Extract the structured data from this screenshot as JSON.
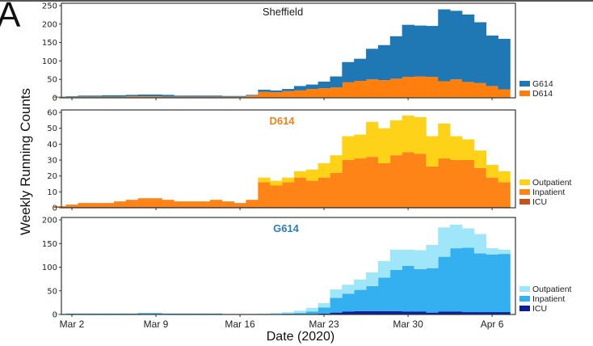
{
  "figure": {
    "panel_letter": "A",
    "ylabel": "Weekly Running Counts",
    "xlabel": "Date (2020)"
  },
  "chart_data": [
    {
      "type": "bar",
      "stacked": true,
      "title": "Sheffield",
      "title_color": "#1a1a1a",
      "xlabel": "Date (2020)",
      "ylabel": "Weekly Running Counts",
      "ylim": [
        0,
        250
      ],
      "yticks": [
        0,
        50,
        100,
        150,
        200,
        250
      ],
      "xtick_labels": [
        "Mar 2",
        "Mar 9",
        "Mar 16",
        "Mar 23",
        "Mar 30",
        "Apr 6"
      ],
      "legend_position": "right-bottom",
      "categories": [
        "Mar 1",
        "Mar 2",
        "Mar 3",
        "Mar 4",
        "Mar 5",
        "Mar 6",
        "Mar 7",
        "Mar 8",
        "Mar 9",
        "Mar 10",
        "Mar 11",
        "Mar 12",
        "Mar 13",
        "Mar 14",
        "Mar 15",
        "Mar 16",
        "Mar 17",
        "Mar 18",
        "Mar 19",
        "Mar 20",
        "Mar 21",
        "Mar 22",
        "Mar 23",
        "Mar 24",
        "Mar 25",
        "Mar 26",
        "Mar 27",
        "Mar 28",
        "Mar 29",
        "Mar 30",
        "Mar 31",
        "Apr 1",
        "Apr 2",
        "Apr 3",
        "Apr 4",
        "Apr 5",
        "Apr 6",
        "Apr 7"
      ],
      "series": [
        {
          "name": "D614",
          "color": "#ff7f0e",
          "values": [
            2,
            2,
            3,
            3,
            3,
            3,
            4,
            4,
            4,
            3,
            3,
            3,
            3,
            3,
            3,
            3,
            6,
            16,
            15,
            18,
            20,
            24,
            26,
            28,
            42,
            46,
            50,
            48,
            52,
            57,
            58,
            57,
            45,
            50,
            43,
            40,
            32,
            23
          ]
        },
        {
          "name": "G614",
          "color": "#1f77b4",
          "values": [
            1,
            2,
            3,
            3,
            4,
            4,
            4,
            5,
            5,
            5,
            3,
            3,
            3,
            3,
            2,
            2,
            2,
            6,
            5,
            6,
            12,
            12,
            18,
            30,
            55,
            60,
            83,
            95,
            115,
            141,
            138,
            138,
            195,
            186,
            183,
            165,
            137,
            137
          ]
        }
      ],
      "legend": [
        {
          "label": "G614",
          "color": "#1f77b4"
        },
        {
          "label": "D614",
          "color": "#ff7f0e"
        }
      ]
    },
    {
      "type": "bar",
      "stacked": true,
      "title": "D614",
      "title_color": "#f0821e",
      "ylim": [
        0,
        60
      ],
      "yticks": [
        0,
        10,
        20,
        30,
        40,
        50,
        60
      ],
      "xtick_labels": [
        "Mar 2",
        "Mar 9",
        "Mar 16",
        "Mar 23",
        "Mar 30",
        "Apr 6"
      ],
      "legend_position": "right-bottom",
      "categories": [
        "Mar 1",
        "Mar 2",
        "Mar 3",
        "Mar 4",
        "Mar 5",
        "Mar 6",
        "Mar 7",
        "Mar 8",
        "Mar 9",
        "Mar 10",
        "Mar 11",
        "Mar 12",
        "Mar 13",
        "Mar 14",
        "Mar 15",
        "Mar 16",
        "Mar 17",
        "Mar 18",
        "Mar 19",
        "Mar 20",
        "Mar 21",
        "Mar 22",
        "Mar 23",
        "Mar 24",
        "Mar 25",
        "Mar 26",
        "Mar 27",
        "Mar 28",
        "Mar 29",
        "Mar 30",
        "Mar 31",
        "Apr 1",
        "Apr 2",
        "Apr 3",
        "Apr 4",
        "Apr 5",
        "Apr 6",
        "Apr 7"
      ],
      "series": [
        {
          "name": "ICU",
          "color": "#c8501e",
          "values": [
            0.5,
            0.5,
            0.5,
            0.5,
            0.5,
            0.5,
            0.5,
            0.5,
            0.5,
            0.5,
            0.5,
            0.5,
            0.5,
            0.5,
            0.5,
            0.5,
            0.5,
            0.5,
            0.5,
            0.5,
            0.5,
            0.5,
            0.5,
            0.5,
            0.5,
            0.5,
            0.5,
            0.5,
            0.5,
            0.5,
            0.5,
            0.5,
            0.5,
            0.5,
            0.5,
            0.5,
            0.5,
            0.5
          ]
        },
        {
          "name": "Inpatient",
          "color": "#ff8418",
          "values": [
            0.5,
            1.5,
            2.5,
            2.5,
            2.5,
            3.5,
            4.5,
            5.5,
            5.5,
            4.5,
            3.5,
            3.5,
            3.5,
            4.5,
            3.5,
            2.5,
            4.5,
            15.5,
            13.5,
            15.5,
            18.5,
            16.5,
            18.5,
            21.5,
            29.5,
            30.5,
            31.5,
            27.5,
            32.5,
            34.5,
            33.5,
            25.5,
            30.5,
            29.5,
            29.5,
            24.5,
            18.5,
            15.5
          ]
        },
        {
          "name": "Outpatient",
          "color": "#ffd21a",
          "values": [
            0,
            0,
            0,
            0,
            0,
            0,
            0,
            0,
            0,
            0,
            0,
            0,
            0,
            0,
            0,
            0,
            0,
            3,
            3,
            3,
            4,
            7,
            9,
            11,
            15,
            15,
            22,
            22,
            22,
            23,
            23,
            19,
            22,
            15,
            13,
            11,
            8,
            7
          ]
        }
      ],
      "legend": [
        {
          "label": "Outpatient",
          "color": "#ffd21a"
        },
        {
          "label": "Inpatient",
          "color": "#ff8418"
        },
        {
          "label": "ICU",
          "color": "#c8501e"
        }
      ]
    },
    {
      "type": "bar",
      "stacked": true,
      "title": "G614",
      "title_color": "#2c7fb8",
      "ylim": [
        0,
        200
      ],
      "yticks": [
        0,
        50,
        100,
        150,
        200
      ],
      "xtick_labels": [
        "Mar 2",
        "Mar 9",
        "Mar 16",
        "Mar 23",
        "Mar 30",
        "Apr 6"
      ],
      "legend_position": "right-bottom",
      "categories": [
        "Mar 1",
        "Mar 2",
        "Mar 3",
        "Mar 4",
        "Mar 5",
        "Mar 6",
        "Mar 7",
        "Mar 8",
        "Mar 9",
        "Mar 10",
        "Mar 11",
        "Mar 12",
        "Mar 13",
        "Mar 14",
        "Mar 15",
        "Mar 16",
        "Mar 17",
        "Mar 18",
        "Mar 19",
        "Mar 20",
        "Mar 21",
        "Mar 22",
        "Mar 23",
        "Mar 24",
        "Mar 25",
        "Mar 26",
        "Mar 27",
        "Mar 28",
        "Mar 29",
        "Mar 30",
        "Mar 31",
        "Apr 1",
        "Apr 2",
        "Apr 3",
        "Apr 4",
        "Apr 5",
        "Apr 6",
        "Apr 7"
      ],
      "series": [
        {
          "name": "ICU",
          "color": "#0a1e9e",
          "values": [
            0,
            0,
            0,
            0,
            0,
            0,
            0,
            0,
            0,
            0,
            0,
            0,
            0,
            0,
            0,
            0,
            0,
            0,
            0,
            0,
            0,
            1,
            2,
            4,
            6,
            7,
            7,
            7,
            7,
            6,
            6,
            4,
            6,
            6,
            5,
            5,
            5,
            5
          ]
        },
        {
          "name": "Inpatient",
          "color": "#34b0f0",
          "values": [
            1,
            2,
            2,
            2,
            2,
            2,
            2,
            3,
            3,
            2,
            2,
            2,
            2,
            2,
            1,
            1,
            1,
            1,
            1,
            2,
            3,
            5,
            13,
            31,
            38,
            45,
            53,
            71,
            87,
            97,
            90,
            94,
            116,
            134,
            136,
            124,
            122,
            123
          ]
        },
        {
          "name": "Outpatient",
          "color": "#a0e6fa",
          "values": [
            0,
            0,
            0,
            0,
            0,
            0,
            0,
            0,
            0,
            0,
            0,
            0,
            0,
            0,
            0,
            0,
            0,
            1,
            2,
            3,
            5,
            8,
            9,
            18,
            19,
            22,
            29,
            35,
            43,
            34,
            40,
            49,
            62,
            50,
            41,
            41,
            13,
            9
          ]
        }
      ],
      "legend": [
        {
          "label": "Outpatient",
          "color": "#a0e6fa"
        },
        {
          "label": "Inpatient",
          "color": "#34b0f0"
        },
        {
          "label": "ICU",
          "color": "#0a1e9e"
        }
      ]
    }
  ]
}
